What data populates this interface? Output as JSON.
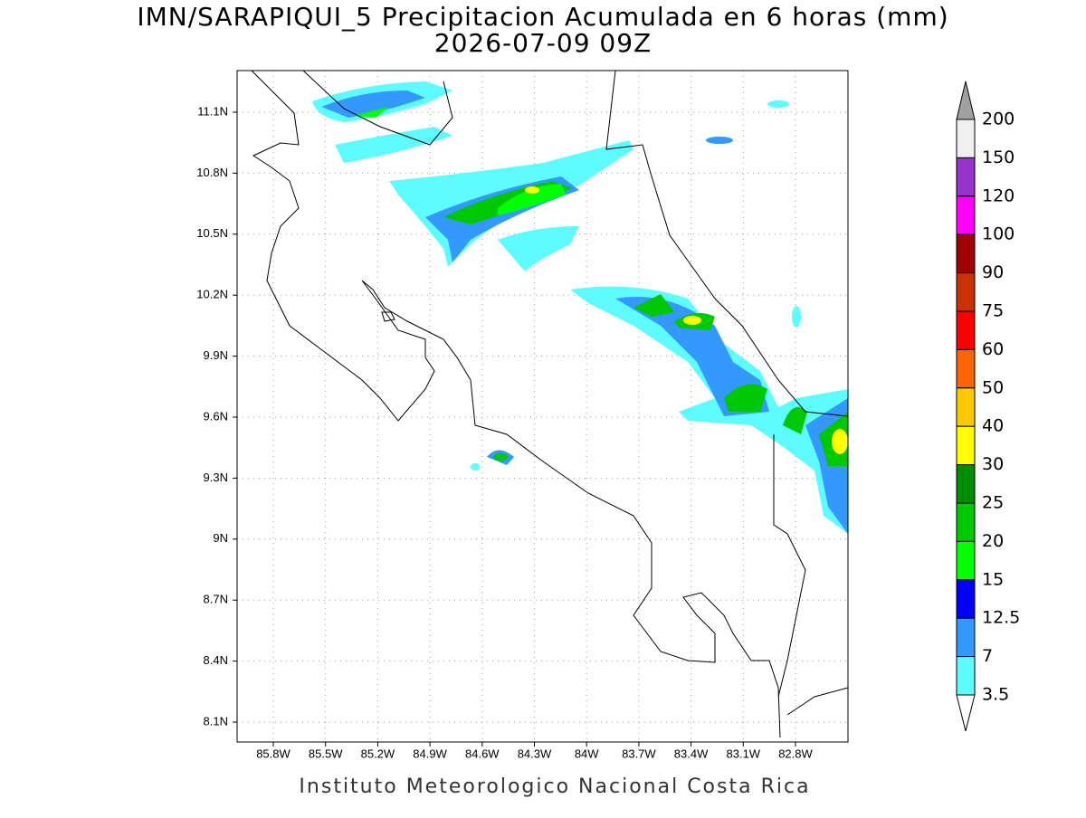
{
  "title": "IMN/SARAPIQUI_5 Precipitacion Acumulada en 6 horas (mm)",
  "subtitle": "2026-07-09 09Z",
  "map": {
    "lon_labels": [
      "85.8W",
      "85.5W",
      "85.2W",
      "84.9W",
      "84.6W",
      "84.3W",
      "84W",
      "83.7W",
      "83.4W",
      "83.1W",
      "82.8W"
    ],
    "lat_labels": [
      "11.1N",
      "10.8N",
      "10.5N",
      "10.2N",
      "9.9N",
      "9.6N",
      "9.3N",
      "9N",
      "8.7N",
      "8.4N",
      "8.1N"
    ]
  },
  "colorbar": {
    "labels": [
      "200",
      "150",
      "120",
      "100",
      "90",
      "75",
      "60",
      "50",
      "40",
      "30",
      "25",
      "20",
      "15",
      "12.5",
      "7",
      "3.5"
    ],
    "colors": [
      "#a0a0a0",
      "#f0f0f0",
      "#9932cc",
      "#ff00ff",
      "#a00000",
      "#c83200",
      "#ff0000",
      "#ff6400",
      "#ffc800",
      "#ffff00",
      "#008c00",
      "#00c800",
      "#00ff00",
      "#0000ff",
      "#3399ff",
      "#5ffcff",
      "#ffffff"
    ]
  },
  "footer": "Instituto Meteorologico Nacional Costa Rica"
}
